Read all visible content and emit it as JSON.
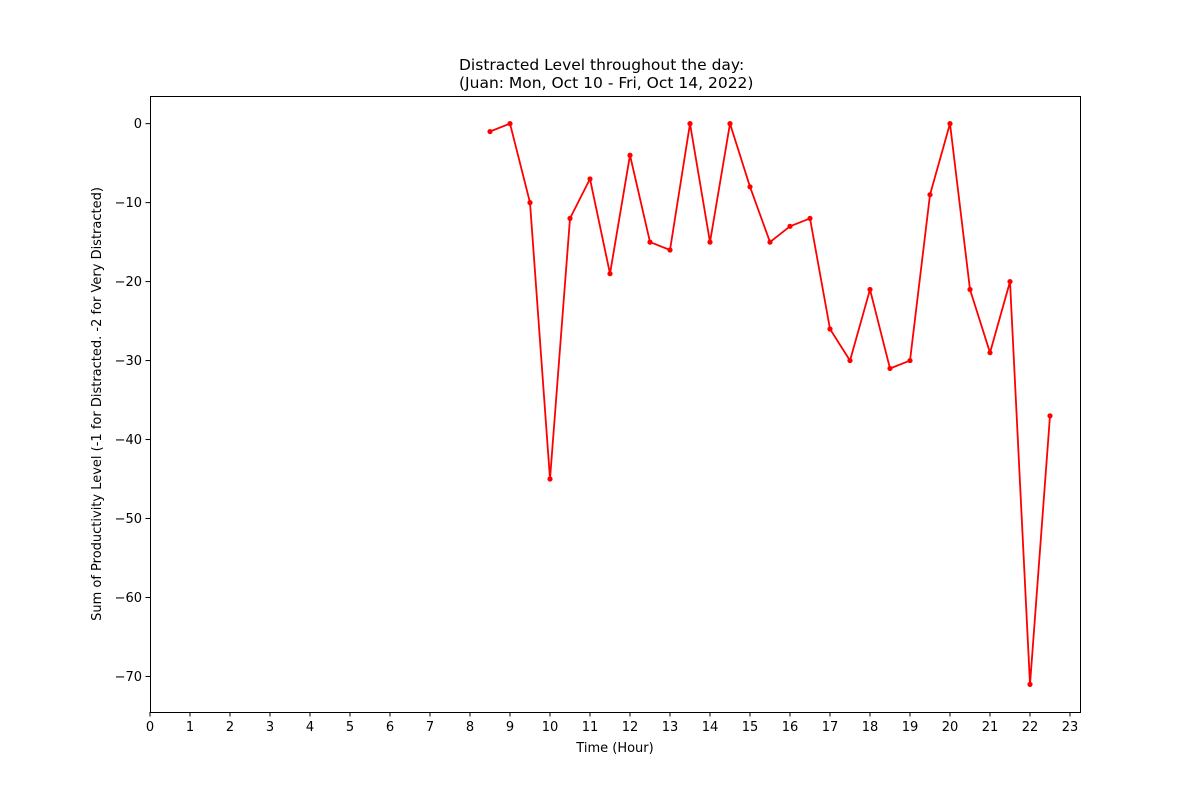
{
  "chart_data": {
    "type": "line",
    "title_lines": [
      "Distracted Level throughout the day:",
      "(Juan: Mon, Oct 10 - Fri, Oct 14, 2022)"
    ],
    "xlabel": "Time (Hour)",
    "ylabel": "Sum of Productivity Level (-1 for Distracted. -2 for Very Distracted)",
    "xlim": [
      0,
      23.25
    ],
    "ylim": [
      -74.5,
      3.5
    ],
    "x_ticks": [
      0,
      1,
      2,
      3,
      4,
      5,
      6,
      7,
      8,
      9,
      10,
      11,
      12,
      13,
      14,
      15,
      16,
      17,
      18,
      19,
      20,
      21,
      22,
      23
    ],
    "y_ticks": [
      0,
      -10,
      -20,
      -30,
      -40,
      -50,
      -60,
      -70
    ],
    "grid": false,
    "color": "#ff0000",
    "series": [
      {
        "x": [
          8.5,
          9,
          9.5,
          10,
          10.5,
          11,
          11.5,
          12,
          12.5,
          13,
          13.5,
          14,
          14.5,
          15,
          15.5,
          16,
          16.5,
          17,
          17.5,
          18,
          18.5,
          19,
          19.5,
          20,
          20.5,
          21,
          21.5,
          22,
          22.5
        ],
        "values": [
          -1,
          0,
          -10,
          -45,
          -12,
          -7,
          -19,
          -4,
          -15,
          -16,
          0,
          -15,
          0,
          -8,
          -15,
          -13,
          -12,
          -26,
          -30,
          -21,
          -31,
          -30,
          -9,
          0,
          -21,
          -29,
          -20,
          -71,
          -37
        ]
      }
    ]
  }
}
